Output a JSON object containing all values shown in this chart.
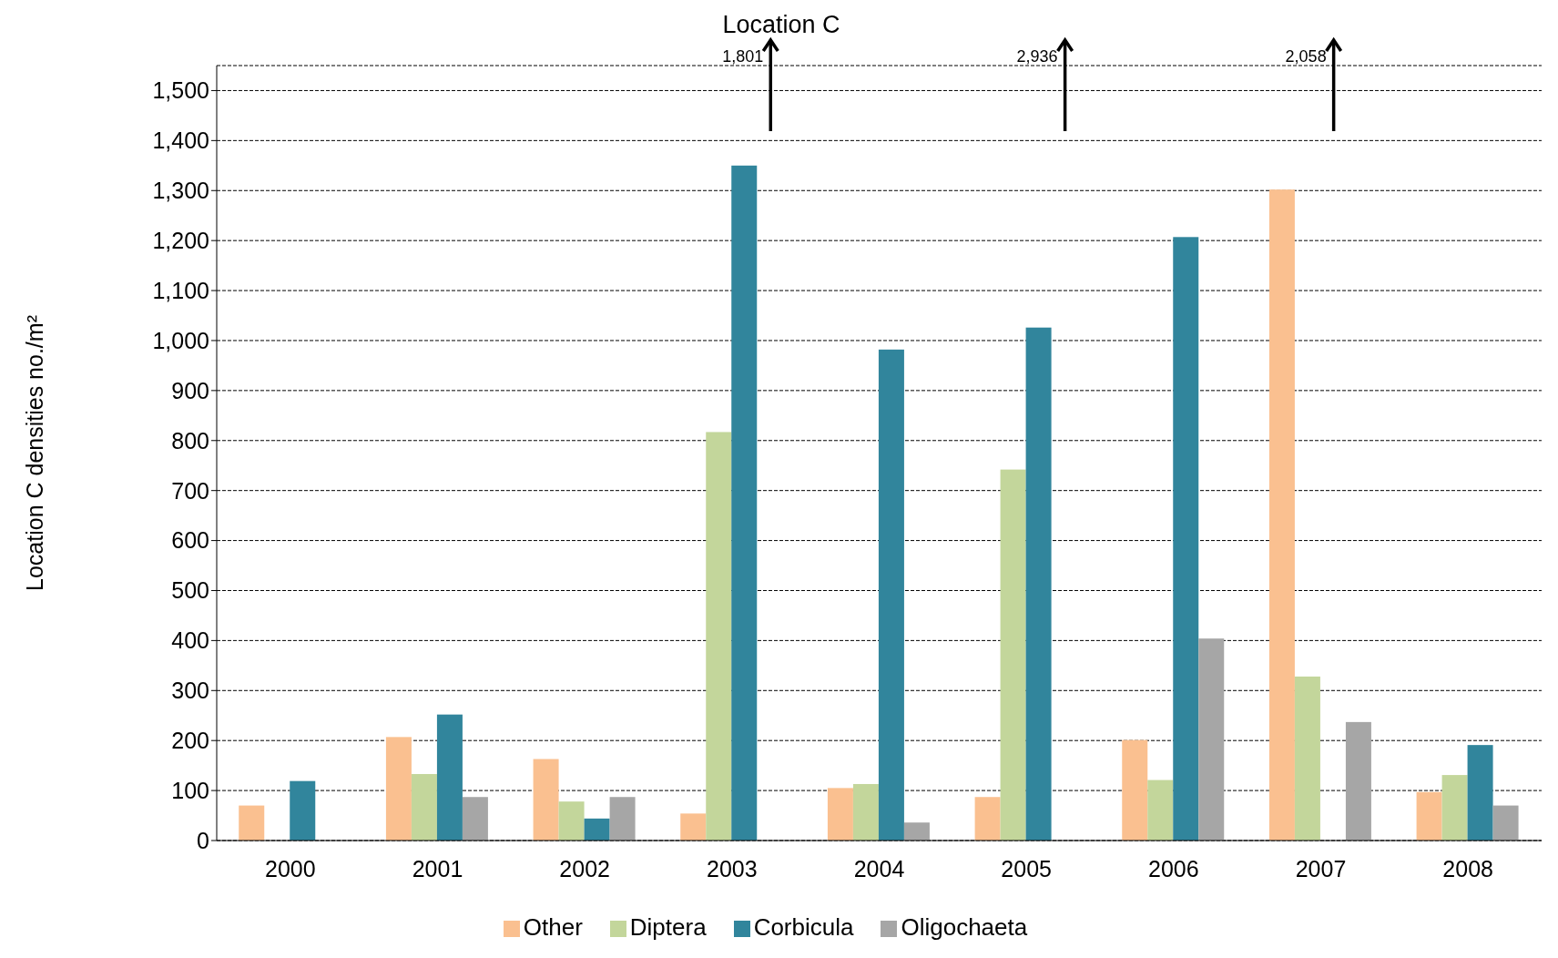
{
  "chart_data": {
    "type": "bar",
    "title": "Location C",
    "ylabel": "Location C densities no./m²",
    "categories": [
      "2000",
      "2001",
      "2002",
      "2003",
      "2004",
      "2005",
      "2006",
      "2007",
      "2008"
    ],
    "series": [
      {
        "name": "Other",
        "color": "#fac090",
        "values": [
          70,
          207,
          163,
          54,
          105,
          87,
          201,
          1302,
          97
        ]
      },
      {
        "name": "Diptera",
        "color": "#c3d69b",
        "values": [
          0,
          133,
          78,
          817,
          113,
          742,
          121,
          328,
          131
        ]
      },
      {
        "name": "Corbicula",
        "color": "#31859c",
        "values": [
          119,
          252,
          44,
          1350,
          982,
          1026,
          1207,
          null,
          191
        ]
      },
      {
        "name": "Oligochaeta",
        "color": "#a6a6a6",
        "values": [
          0,
          87,
          87,
          null,
          36,
          null,
          404,
          237,
          70
        ]
      }
    ],
    "annotations": [
      "1,801",
      "2,936",
      "2,058"
    ],
    "ylim": [
      0,
      1550
    ],
    "yticks": [
      0,
      100,
      200,
      300,
      400,
      500,
      600,
      700,
      800,
      900,
      {
        "value": 1000,
        "label": "1,000"
      },
      {
        "value": 1100,
        "label": "1,100"
      },
      {
        "value": 1200,
        "label": "1,200"
      },
      {
        "value": 1300,
        "label": "1,300"
      },
      {
        "value": 1400,
        "label": "1,400"
      },
      {
        "value": 1500,
        "label": "1,500"
      }
    ],
    "grid": "y",
    "legend": "bottom"
  }
}
